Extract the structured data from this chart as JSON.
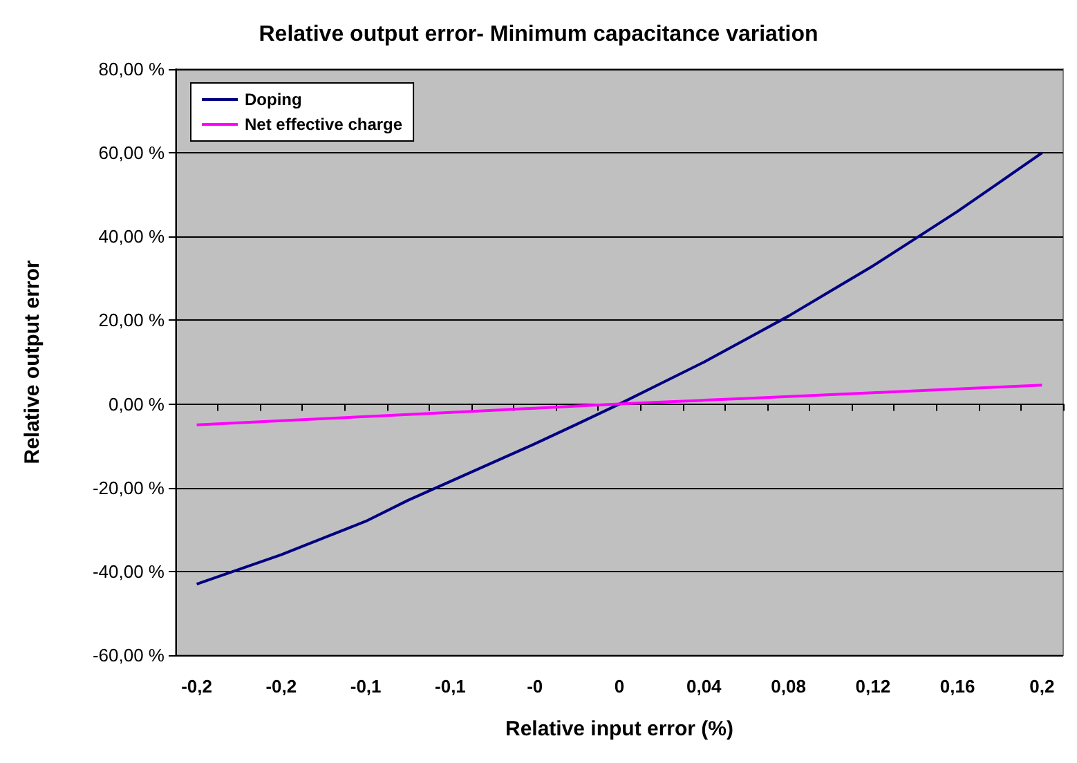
{
  "chart_data": {
    "type": "line",
    "title": "Relative output error- Minimum capacitance variation",
    "xlabel": "Relative input error (%)",
    "ylabel": "Relative output error",
    "categories": [
      "-0,2",
      null,
      "-0,2",
      null,
      "-0,1",
      null,
      "-0,1",
      null,
      "-0",
      null,
      "0",
      null,
      "0,04",
      null,
      "0,08",
      null,
      "0,12",
      null,
      "0,16",
      null,
      "0,2"
    ],
    "series": [
      {
        "name": "Doping",
        "color": "#000080",
        "values": [
          -43,
          -39.5,
          -36,
          -32,
          -28,
          -23,
          -18.5,
          -14,
          -9.5,
          -4.8,
          0,
          5,
          10,
          15.5,
          21,
          27,
          33,
          39.5,
          46,
          53,
          60
        ]
      },
      {
        "name": "Net effective charge",
        "color": "#ff00ff",
        "values": [
          -5,
          -4.5,
          -4,
          -3.5,
          -3,
          -2.5,
          -2,
          -1.5,
          -1,
          -0.5,
          0,
          0.45,
          0.9,
          1.35,
          1.8,
          2.25,
          2.7,
          3.15,
          3.6,
          4.05,
          4.5
        ]
      }
    ],
    "ylim": [
      -60,
      80
    ],
    "yticks": [
      {
        "value": -60,
        "label": "-60,00 %"
      },
      {
        "value": -40,
        "label": "-40,00 %"
      },
      {
        "value": -20,
        "label": "-20,00 %"
      },
      {
        "value": 0,
        "label": "0,00 %"
      },
      {
        "value": 20,
        "label": "20,00 %"
      },
      {
        "value": 40,
        "label": "40,00 %"
      },
      {
        "value": 60,
        "label": "60,00 %"
      },
      {
        "value": 80,
        "label": "80,00 %"
      }
    ],
    "grid": "y",
    "legend": "top left",
    "marker": "none",
    "line_style": "solid"
  }
}
